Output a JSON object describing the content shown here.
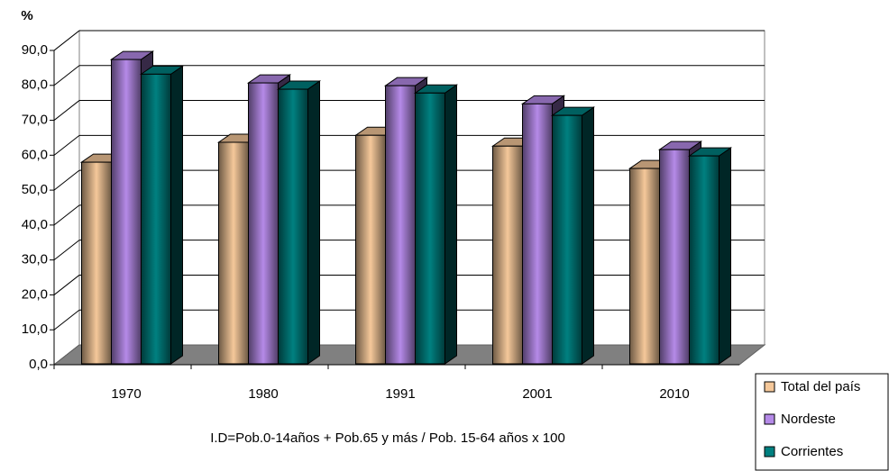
{
  "chart_data": {
    "type": "bar3d",
    "y_axis_label": "%",
    "note": "I.D=Pob.0-14años + Pob.65 y más / Pob. 15-64 años x 100",
    "categories": [
      "1970",
      "1980",
      "1991",
      "2001",
      "2010"
    ],
    "series": [
      {
        "name": "Total del país",
        "color": "#f5c89a",
        "values": [
          58.0,
          63.7,
          65.7,
          62.6,
          56.2
        ]
      },
      {
        "name": "Nordeste",
        "color": "#b58ae8",
        "values": [
          87.4,
          80.7,
          79.9,
          74.7,
          61.6
        ]
      },
      {
        "name": "Corrientes",
        "color": "#008080",
        "values": [
          83.2,
          78.9,
          77.8,
          71.4,
          59.8
        ]
      }
    ],
    "ylim": [
      0,
      90
    ],
    "yticks": [
      {
        "value": 0,
        "label": "0,0"
      },
      {
        "value": 10,
        "label": "10,0"
      },
      {
        "value": 20,
        "label": "20,0"
      },
      {
        "value": 30,
        "label": "30,0"
      },
      {
        "value": 40,
        "label": "40,0"
      },
      {
        "value": 50,
        "label": "50,0"
      },
      {
        "value": 60,
        "label": "60,0"
      },
      {
        "value": 70,
        "label": "70,0"
      },
      {
        "value": 80,
        "label": "80,0"
      },
      {
        "value": 90,
        "label": "90,0"
      }
    ],
    "grid": true,
    "legend": "bottom-right"
  }
}
